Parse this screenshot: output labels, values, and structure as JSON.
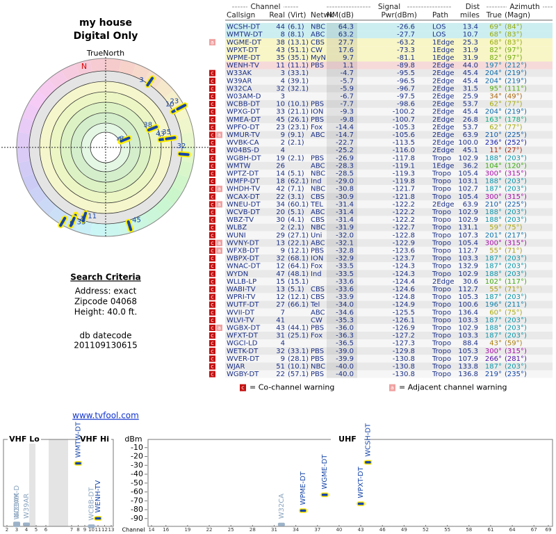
{
  "header": {
    "title": "my house",
    "subtitle": "Digital Only"
  },
  "polar": {
    "north_label": "TrueNorth",
    "n": "N"
  },
  "search": {
    "heading": "Search Criteria",
    "lines": [
      "Address: exact",
      "Zipcode 04068",
      "Height: 40.0 ft."
    ],
    "datecode_label": "db datecode",
    "datecode": "201109130615"
  },
  "table": {
    "group_headers": [
      "Channel",
      "Signal",
      "Dist",
      "Azimuth"
    ],
    "columns": [
      "Callsign",
      "Real",
      "(Virt)",
      "Netwk",
      "NM(dB)",
      "Pwr(dBm)",
      "Path",
      "miles",
      "True",
      "(Magn)"
    ],
    "rows": [
      [
        "WCSH-DT",
        44,
        "(6.1)",
        "NBC",
        "64.3",
        "-26.6",
        "LOS",
        "13.4",
        "69°",
        "(84°)",
        []
      ],
      [
        "WMTW-DT",
        8,
        "(8.1)",
        "ABC",
        "63.2",
        "-27.7",
        "LOS",
        "10.7",
        "68°",
        "(83°)",
        []
      ],
      [
        "WGME-DT",
        38,
        "(13.1)",
        "CBS",
        "27.7",
        "-63.2",
        "1Edge",
        "25.3",
        "68°",
        "(83°)",
        [
          "a"
        ]
      ],
      [
        "WPXT-DT",
        43,
        "(51.1)",
        "CW",
        "17.6",
        "-73.3",
        "1Edge",
        "31.9",
        "82°",
        "(97°)",
        []
      ],
      [
        "WPME-DT",
        35,
        "(35.1)",
        "MyN",
        "9.7",
        "-81.1",
        "1Edge",
        "31.9",
        "82°",
        "(97°)",
        []
      ],
      [
        "WENH-TV",
        11,
        "(11.1)",
        "PBS",
        "1.1",
        "-89.8",
        "2Edge",
        "44.0",
        "197°",
        "(212°)",
        []
      ],
      [
        "W33AK",
        3,
        "(33.1)",
        null,
        "-4.7",
        "-95.5",
        "2Edge",
        "45.4",
        "204°",
        "(219°)",
        [
          "c"
        ]
      ],
      [
        "W39AR",
        4,
        "(39.1)",
        null,
        "-5.7",
        "-96.5",
        "2Edge",
        "45.4",
        "204°",
        "(219°)",
        [
          "c"
        ]
      ],
      [
        "W32CA",
        32,
        "(32.1)",
        null,
        "-5.9",
        "-96.7",
        "2Edge",
        "31.5",
        "95°",
        "(111°)",
        [
          "c"
        ]
      ],
      [
        "W03AM-D",
        3,
        null,
        null,
        "-6.7",
        "-97.5",
        "2Edge",
        "25.9",
        "34°",
        "(49°)",
        [
          "c"
        ]
      ],
      [
        "WCBB-DT",
        10,
        "(10.1)",
        "PBS",
        "-7.7",
        "-98.6",
        "2Edge",
        "53.7",
        "62°",
        "(77°)",
        [
          "c"
        ]
      ],
      [
        "WPXG-DT",
        33,
        "(21.1)",
        "ION",
        "-9.3",
        "-100.2",
        "2Edge",
        "45.4",
        "204°",
        "(219°)",
        [
          "c"
        ]
      ],
      [
        "WMEA-DT",
        45,
        "(26.1)",
        "PBS",
        "-9.8",
        "-100.7",
        "2Edge",
        "26.8",
        "163°",
        "(178°)",
        [
          "c"
        ]
      ],
      [
        "WPFO-DT",
        23,
        "(23.1)",
        "Fox",
        "-14.4",
        "-105.3",
        "2Edge",
        "53.7",
        "62°",
        "(77°)",
        [
          "c"
        ]
      ],
      [
        "WMUR-TV",
        9,
        "(9.1)",
        "ABC",
        "-14.7",
        "-105.6",
        "2Edge",
        "63.9",
        "210°",
        "(225°)",
        [
          "c",
          "a"
        ]
      ],
      [
        "WVBK-CA",
        2,
        "(2.1)",
        null,
        "-22.7",
        "-113.5",
        "2Edge",
        "100.0",
        "236°",
        "(252°)",
        [
          "c"
        ]
      ],
      [
        "W04BS-D",
        4,
        null,
        null,
        "-25.2",
        "-116.0",
        "2Edge",
        "45.1",
        "11°",
        "(27°)",
        [
          "c"
        ]
      ],
      [
        "WGBH-DT",
        19,
        "(2.1)",
        "PBS",
        "-26.9",
        "-117.8",
        "Tropo",
        "102.9",
        "188°",
        "(203°)",
        [
          "c"
        ]
      ],
      [
        "WMTW",
        26,
        null,
        "ABC",
        "-28.3",
        "-119.1",
        "1Edge",
        "36.2",
        "104°",
        "(120°)",
        [
          "c"
        ]
      ],
      [
        "WPTZ-DT",
        14,
        "(5.1)",
        "NBC",
        "-28.5",
        "-119.3",
        "Tropo",
        "105.4",
        "300°",
        "(315°)",
        [
          "c"
        ]
      ],
      [
        "WMFP-DT",
        18,
        "(62.1)",
        "Ind",
        "-29.0",
        "-119.8",
        "Tropo",
        "103.1",
        "188°",
        "(203°)",
        [
          "c"
        ]
      ],
      [
        "WHDH-TV",
        42,
        "(7.1)",
        "NBC",
        "-30.8",
        "-121.7",
        "Tropo",
        "102.7",
        "187°",
        "(203°)",
        [
          "c",
          "a"
        ]
      ],
      [
        "WCAX-DT",
        22,
        "(3.1)",
        "CBS",
        "-30.9",
        "-121.8",
        "Tropo",
        "105.4",
        "300°",
        "(315°)",
        [
          "c"
        ]
      ],
      [
        "WNEU-DT",
        34,
        "(60.1)",
        "TEL",
        "-31.4",
        "-122.2",
        "2Edge",
        "63.9",
        "210°",
        "(225°)",
        [
          "c",
          "a"
        ]
      ],
      [
        "WCVB-DT",
        20,
        "(5.1)",
        "ABC",
        "-31.4",
        "-122.2",
        "Tropo",
        "102.9",
        "188°",
        "(203°)",
        [
          "c"
        ]
      ],
      [
        "WBZ-TV",
        30,
        "(4.1)",
        "CBS",
        "-31.4",
        "-122.2",
        "Tropo",
        "102.9",
        "188°",
        "(203°)",
        [
          "c"
        ]
      ],
      [
        "WLBZ",
        2,
        "(2.1)",
        "NBC",
        "-31.9",
        "-122.7",
        "Tropo",
        "131.1",
        "59°",
        "(75°)",
        [
          "c"
        ]
      ],
      [
        "WUNI",
        29,
        "(27.1)",
        "Uni",
        "-32.0",
        "-122.8",
        "Tropo",
        "107.3",
        "201°",
        "(217°)",
        [
          "c"
        ]
      ],
      [
        "WVNY-DT",
        13,
        "(22.1)",
        "ABC",
        "-32.1",
        "-122.9",
        "Tropo",
        "105.4",
        "300°",
        "(315°)",
        [
          "c",
          "a"
        ]
      ],
      [
        "WFXB-DT",
        9,
        "(12.1)",
        "PBS",
        "-32.8",
        "-123.6",
        "Tropo",
        "112.7",
        "55°",
        "(71°)",
        [
          "c",
          "a"
        ]
      ],
      [
        "WBPX-DT",
        32,
        "(68.1)",
        "ION",
        "-32.9",
        "-123.7",
        "Tropo",
        "103.3",
        "187°",
        "(203°)",
        [
          "c"
        ]
      ],
      [
        "WNAC-DT",
        12,
        "(64.1)",
        "Fox",
        "-33.5",
        "-124.3",
        "Tropo",
        "132.9",
        "187°",
        "(203°)",
        [
          "c"
        ]
      ],
      [
        "WYDN",
        47,
        "(48.1)",
        "Ind",
        "-33.5",
        "-124.3",
        "Tropo",
        "102.9",
        "188°",
        "(203°)",
        [
          "c"
        ]
      ],
      [
        "WLLB-LP",
        15,
        "(15.1)",
        null,
        "-33.6",
        "-124.4",
        "2Edge",
        "30.6",
        "102°",
        "(117°)",
        [
          "c"
        ]
      ],
      [
        "WABI-TV",
        13,
        "(5.1)",
        "CBS",
        "-33.6",
        "-124.6",
        "Tropo",
        "112.7",
        "55°",
        "(71°)",
        [
          "c"
        ]
      ],
      [
        "WPRI-TV",
        12,
        "(12.1)",
        "CBS",
        "-33.9",
        "-124.8",
        "Tropo",
        "105.3",
        "187°",
        "(203°)",
        [
          "c"
        ]
      ],
      [
        "WUTF-DT",
        27,
        "(66.1)",
        "Tel",
        "-34.0",
        "-124.9",
        "Tropo",
        "100.6",
        "196°",
        "(211°)",
        [
          "c"
        ]
      ],
      [
        "WVII-DT",
        7,
        null,
        "ABC",
        "-34.6",
        "-125.5",
        "Tropo",
        "136.4",
        "60°",
        "(75°)",
        [
          "c"
        ]
      ],
      [
        "WLVI-TV",
        41,
        null,
        "CW",
        "-35.3",
        "-126.1",
        "Tropo",
        "103.3",
        "187°",
        "(203°)",
        [
          "c"
        ]
      ],
      [
        "WGBX-DT",
        43,
        "(44.1)",
        "PBS",
        "-36.0",
        "-126.9",
        "Tropo",
        "102.9",
        "188°",
        "(203°)",
        [
          "c",
          "a"
        ]
      ],
      [
        "WFXT-DT",
        31,
        "(25.1)",
        "Fox",
        "-36.3",
        "-127.2",
        "Tropo",
        "103.3",
        "187°",
        "(203°)",
        [
          "c"
        ]
      ],
      [
        "WGCI-LD",
        4,
        null,
        null,
        "-36.5",
        "-127.3",
        "Tropo",
        "88.4",
        "43°",
        "(59°)",
        [
          "c"
        ]
      ],
      [
        "WETK-DT",
        32,
        "(33.1)",
        "PBS",
        "-39.0",
        "-129.8",
        "Tropo",
        "105.3",
        "300°",
        "(315°)",
        [
          "c"
        ]
      ],
      [
        "WVER-DT",
        9,
        "(28.1)",
        "PBS",
        "-39.9",
        "-130.8",
        "Tropo",
        "107.9",
        "266°",
        "(281°)",
        [
          "c"
        ]
      ],
      [
        "WJAR",
        51,
        "(10.1)",
        "NBC",
        "-40.0",
        "-130.8",
        "Tropo",
        "133.8",
        "187°",
        "(203°)",
        [
          "c"
        ]
      ],
      [
        "WGBY-DT",
        22,
        "(57.1)",
        "PBS",
        "-40.0",
        "-130.8",
        "Tropo",
        "136.8",
        "219°",
        "(235°)",
        [
          "c"
        ]
      ]
    ]
  },
  "legend": [
    {
      "icon": "c",
      "text": "= Co-channel warning"
    },
    {
      "icon": "a",
      "text": "= Adjacent channel warning"
    }
  ],
  "link": "www.tvfool.com",
  "spectrum": {
    "ylabel": "dBm",
    "xlabel": "Channel",
    "ylim": [
      0,
      -100
    ],
    "yticks": [
      -10,
      -20,
      -30,
      -40,
      -50,
      -60,
      -70,
      -80,
      -90
    ],
    "bands": [
      {
        "name": "VHF Lo",
        "channels": [
          2,
          3,
          4,
          5,
          6
        ]
      },
      {
        "name": "VHF Hi",
        "channels": [
          7,
          8,
          9,
          10,
          11,
          12,
          13
        ]
      },
      {
        "name": "UHF",
        "channels": [
          14,
          16,
          19,
          22,
          25,
          28,
          31,
          34,
          37,
          40,
          43,
          46,
          49,
          52,
          55,
          58,
          61,
          64,
          67,
          69
        ]
      }
    ]
  }
}
